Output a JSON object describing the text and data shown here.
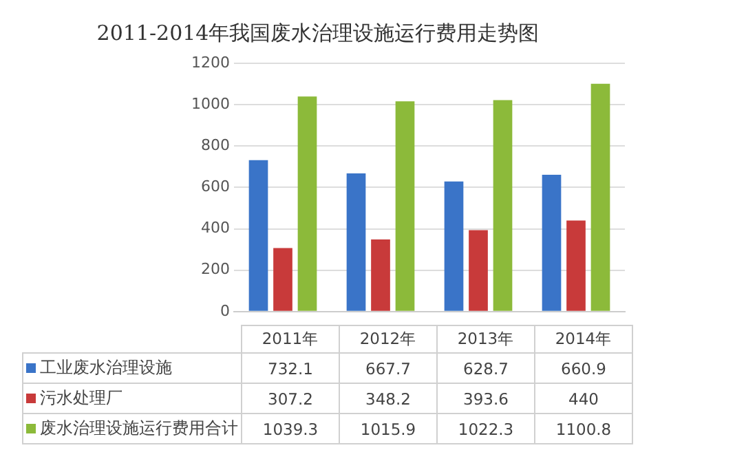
{
  "chart_data": {
    "type": "bar",
    "title": "2011-2014年我国废水治理设施运行费用走势图",
    "categories": [
      "2011年",
      "2012年",
      "2013年",
      "2014年"
    ],
    "series": [
      {
        "name": "工业废水治理设施",
        "color": "#3a74c8",
        "values": [
          732.1,
          667.7,
          628.7,
          660.9
        ]
      },
      {
        "name": "污水处理厂",
        "color": "#c83a3a",
        "values": [
          307.2,
          348.2,
          393.6,
          440
        ]
      },
      {
        "name": "废水治理设施运行费用合计",
        "color": "#8cba3a",
        "values": [
          1039.3,
          1015.9,
          1022.3,
          1100.8
        ]
      }
    ],
    "ylim": [
      0,
      1200
    ],
    "yticks": [
      0,
      200,
      400,
      600,
      800,
      1000,
      1200
    ],
    "grid": "y",
    "legend": "bottom",
    "data_labels": true
  }
}
